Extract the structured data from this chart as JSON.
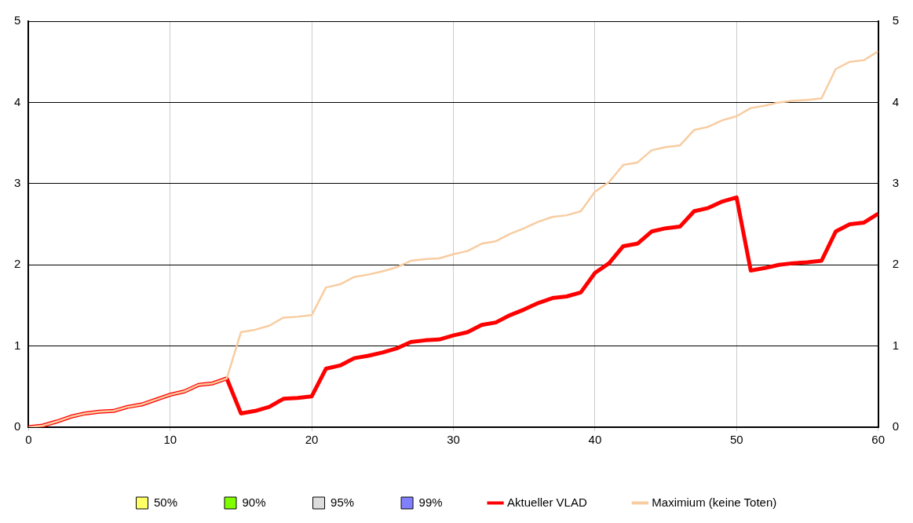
{
  "chart_data": {
    "type": "line",
    "xlim": [
      0,
      60
    ],
    "xticks": [
      0,
      10,
      20,
      30,
      40,
      50,
      60
    ],
    "ylim": [
      0,
      5
    ],
    "yticks": [
      0,
      1,
      2,
      3,
      4,
      5
    ],
    "y2lim": [
      0,
      5
    ],
    "y2ticks": [
      0,
      1,
      2,
      3,
      4,
      5
    ],
    "grid": true,
    "legend": "bottom",
    "x": [
      0,
      1,
      2,
      3,
      4,
      5,
      6,
      7,
      8,
      9,
      10,
      11,
      12,
      13,
      14,
      15,
      16,
      17,
      18,
      19,
      20,
      21,
      22,
      23,
      24,
      25,
      26,
      27,
      28,
      29,
      30,
      31,
      32,
      33,
      34,
      35,
      36,
      37,
      38,
      39,
      40,
      41,
      42,
      43,
      44,
      45,
      46,
      47,
      48,
      49,
      50,
      51,
      52,
      53,
      54,
      55,
      56,
      57,
      58,
      59,
      60
    ],
    "series": [
      {
        "name": "50%",
        "type": "area",
        "color": "#ffff66",
        "values": [
          null,
          null,
          null,
          null,
          null,
          null,
          null,
          null,
          null,
          null,
          null,
          null,
          null,
          null,
          null,
          null,
          null,
          null,
          null,
          null,
          null,
          null,
          null,
          null,
          null,
          null,
          null,
          null,
          null,
          null,
          null,
          null,
          null,
          null,
          null,
          null,
          null,
          null,
          null,
          null,
          null,
          null,
          null,
          null,
          null,
          null,
          null,
          null,
          null,
          null,
          null,
          null,
          null,
          null,
          null,
          null,
          null,
          null,
          null,
          null,
          null
        ]
      },
      {
        "name": "90%",
        "type": "area",
        "color": "#80ff00",
        "values": [
          null,
          null,
          null,
          null,
          null,
          null,
          null,
          null,
          null,
          null,
          null,
          null,
          null,
          null,
          null,
          null,
          null,
          null,
          null,
          null,
          null,
          null,
          null,
          null,
          null,
          null,
          null,
          null,
          null,
          null,
          null,
          null,
          null,
          null,
          null,
          null,
          null,
          null,
          null,
          null,
          null,
          null,
          null,
          null,
          null,
          null,
          null,
          null,
          null,
          null,
          null,
          null,
          null,
          null,
          null,
          null,
          null,
          null,
          null,
          null,
          null
        ]
      },
      {
        "name": "95%",
        "type": "area",
        "color": "#dddddd",
        "values": [
          null,
          null,
          null,
          null,
          null,
          null,
          null,
          null,
          null,
          null,
          null,
          null,
          null,
          null,
          null,
          null,
          null,
          null,
          null,
          null,
          null,
          null,
          null,
          null,
          null,
          null,
          null,
          null,
          null,
          null,
          null,
          null,
          null,
          null,
          null,
          null,
          null,
          null,
          null,
          null,
          null,
          null,
          null,
          null,
          null,
          null,
          null,
          null,
          null,
          null,
          null,
          null,
          null,
          null,
          null,
          null,
          null,
          null,
          null,
          null,
          null
        ]
      },
      {
        "name": "99%",
        "type": "area",
        "color": "#8080ff",
        "values": [
          null,
          null,
          null,
          null,
          null,
          null,
          null,
          null,
          null,
          null,
          null,
          null,
          null,
          null,
          null,
          null,
          null,
          null,
          null,
          null,
          null,
          null,
          null,
          null,
          null,
          null,
          null,
          null,
          null,
          null,
          null,
          null,
          null,
          null,
          null,
          null,
          null,
          null,
          null,
          null,
          null,
          null,
          null,
          null,
          null,
          null,
          null,
          null,
          null,
          null,
          null,
          null,
          null,
          null,
          null,
          null,
          null,
          null,
          null,
          null,
          null
        ]
      },
      {
        "name": "Aktueller VLAD",
        "type": "line",
        "color": "#ff0000",
        "values": [
          0,
          0.02,
          0.07,
          0.13,
          0.17,
          0.19,
          0.2,
          0.25,
          0.28,
          0.34,
          0.4,
          0.44,
          0.52,
          0.54,
          0.6,
          0.17,
          0.2,
          0.25,
          0.35,
          0.36,
          0.38,
          0.72,
          0.76,
          0.85,
          0.88,
          0.92,
          0.97,
          1.05,
          1.07,
          1.08,
          1.13,
          1.17,
          1.26,
          1.29,
          1.38,
          1.45,
          1.53,
          1.59,
          1.61,
          1.66,
          1.9,
          2.02,
          2.23,
          2.26,
          2.41,
          2.45,
          2.47,
          2.66,
          2.7,
          2.78,
          2.83,
          1.93,
          1.96,
          2.0,
          2.02,
          2.03,
          2.05,
          2.41,
          2.5,
          2.52,
          2.63
        ]
      },
      {
        "name": "Maximium (keine Toten)",
        "type": "line",
        "color": "#f8cca0",
        "values": [
          0,
          0.02,
          0.07,
          0.13,
          0.17,
          0.19,
          0.2,
          0.25,
          0.28,
          0.34,
          0.4,
          0.44,
          0.52,
          0.54,
          0.6,
          1.17,
          1.2,
          1.25,
          1.35,
          1.36,
          1.38,
          1.72,
          1.76,
          1.85,
          1.88,
          1.92,
          1.97,
          2.05,
          2.07,
          2.08,
          2.13,
          2.17,
          2.26,
          2.29,
          2.38,
          2.45,
          2.53,
          2.59,
          2.61,
          2.66,
          2.9,
          3.02,
          3.23,
          3.26,
          3.41,
          3.45,
          3.47,
          3.66,
          3.7,
          3.78,
          3.83,
          3.93,
          3.96,
          4.0,
          4.02,
          4.03,
          4.05,
          4.41,
          4.5,
          4.52,
          4.63
        ]
      }
    ]
  }
}
